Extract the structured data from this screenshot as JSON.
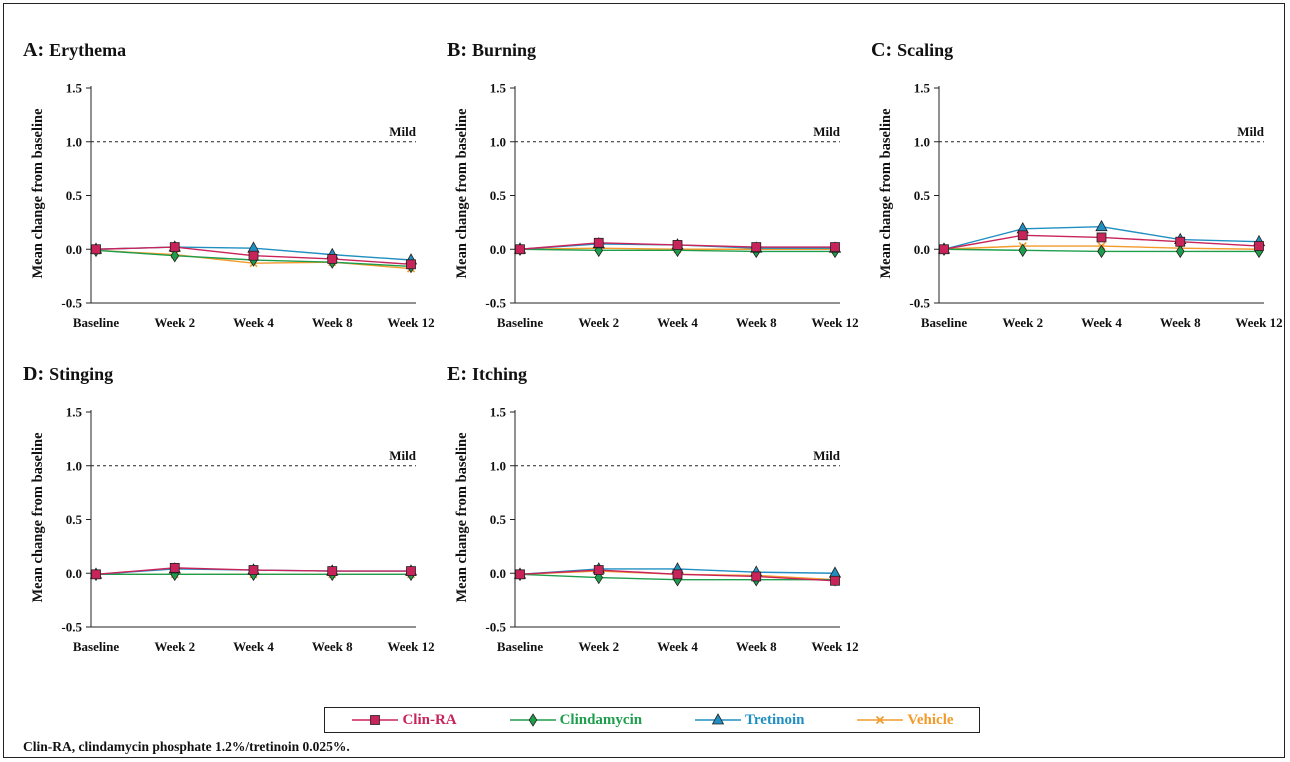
{
  "colors": {
    "Clin-RA": "#c8245a",
    "Clindamycin": "#1e9e4c",
    "Tretinoin": "#1f8fc2",
    "Vehicle": "#f39a2b"
  },
  "legend": [
    {
      "name": "Clin-RA",
      "marker": "square-marker-icon"
    },
    {
      "name": "Clindamycin",
      "marker": "diamond-marker-icon"
    },
    {
      "name": "Tretinoin",
      "marker": "triangle-marker-icon"
    },
    {
      "name": "Vehicle",
      "marker": "x-marker-icon"
    }
  ],
  "footnote": "Clin-RA, clindamycin phosphate 1.2%/tretinoin 0.025%.",
  "chart_data": [
    {
      "type": "line",
      "title": "Erythema",
      "panel_letter": "A:",
      "ylabel": "Mean change from baseline",
      "xlabel": "",
      "categories": [
        "Baseline",
        "Week 2",
        "Week 4",
        "Week 8",
        "Week 12"
      ],
      "ylim": [
        -0.5,
        1.5
      ],
      "yticks": [
        "-0.5",
        "0.0",
        "0.5",
        "1.0",
        "1.5"
      ],
      "reference_line": {
        "y": 1.0,
        "label": "Mild"
      },
      "series": [
        {
          "name": "Clin-RA",
          "values": [
            0.0,
            0.02,
            -0.06,
            -0.09,
            -0.14
          ]
        },
        {
          "name": "Clindamycin",
          "values": [
            -0.01,
            -0.06,
            -0.1,
            -0.12,
            -0.16
          ]
        },
        {
          "name": "Tretinoin",
          "values": [
            0.0,
            0.02,
            0.01,
            -0.05,
            -0.1
          ]
        },
        {
          "name": "Vehicle",
          "values": [
            -0.01,
            -0.05,
            -0.13,
            -0.12,
            -0.18
          ]
        }
      ]
    },
    {
      "type": "line",
      "title": "Burning",
      "panel_letter": "B:",
      "ylabel": "Mean change from baseline",
      "xlabel": "",
      "categories": [
        "Baseline",
        "Week 2",
        "Week 4",
        "Week 8",
        "Week 12"
      ],
      "ylim": [
        -0.5,
        1.5
      ],
      "yticks": [
        "-0.5",
        "0.0",
        "0.5",
        "1.0",
        "1.5"
      ],
      "reference_line": {
        "y": 1.0,
        "label": "Mild"
      },
      "series": [
        {
          "name": "Clin-RA",
          "values": [
            0.0,
            0.06,
            0.04,
            0.02,
            0.02
          ]
        },
        {
          "name": "Clindamycin",
          "values": [
            0.0,
            -0.01,
            -0.01,
            -0.02,
            -0.02
          ]
        },
        {
          "name": "Tretinoin",
          "values": [
            0.0,
            0.05,
            0.04,
            0.01,
            0.01
          ]
        },
        {
          "name": "Vehicle",
          "values": [
            0.0,
            0.01,
            0.0,
            0.0,
            0.0
          ]
        }
      ]
    },
    {
      "type": "line",
      "title": "Scaling",
      "panel_letter": "C:",
      "ylabel": "Mean change from baseline",
      "xlabel": "",
      "categories": [
        "Baseline",
        "Week 2",
        "Week 4",
        "Week 8",
        "Week 12"
      ],
      "ylim": [
        -0.5,
        1.5
      ],
      "yticks": [
        "-0.5",
        "0.0",
        "0.5",
        "1.0",
        "1.5"
      ],
      "reference_line": {
        "y": 1.0,
        "label": "Mild"
      },
      "series": [
        {
          "name": "Clin-RA",
          "values": [
            0.0,
            0.13,
            0.11,
            0.07,
            0.03
          ]
        },
        {
          "name": "Clindamycin",
          "values": [
            0.0,
            -0.01,
            -0.02,
            -0.02,
            -0.02
          ]
        },
        {
          "name": "Tretinoin",
          "values": [
            0.0,
            0.19,
            0.21,
            0.09,
            0.07
          ]
        },
        {
          "name": "Vehicle",
          "values": [
            0.0,
            0.03,
            0.03,
            0.01,
            0.0
          ]
        }
      ]
    },
    {
      "type": "line",
      "title": "Stinging",
      "panel_letter": "D:",
      "ylabel": "Mean change from baseline",
      "xlabel": "",
      "categories": [
        "Baseline",
        "Week 2",
        "Week 4",
        "Week 8",
        "Week 12"
      ],
      "ylim": [
        -0.5,
        1.5
      ],
      "yticks": [
        "-0.5",
        "0.0",
        "0.5",
        "1.0",
        "1.5"
      ],
      "reference_line": {
        "y": 1.0,
        "label": "Mild"
      },
      "series": [
        {
          "name": "Clin-RA",
          "values": [
            -0.01,
            0.05,
            0.03,
            0.02,
            0.02
          ]
        },
        {
          "name": "Clindamycin",
          "values": [
            -0.01,
            -0.01,
            -0.01,
            -0.01,
            -0.01
          ]
        },
        {
          "name": "Tretinoin",
          "values": [
            -0.01,
            0.04,
            0.03,
            0.02,
            0.02
          ]
        },
        {
          "name": "Vehicle",
          "values": [
            -0.01,
            -0.01,
            -0.01,
            -0.01,
            -0.01
          ]
        }
      ]
    },
    {
      "type": "line",
      "title": "Itching",
      "panel_letter": "E:",
      "ylabel": "Mean change from baseline",
      "xlabel": "",
      "categories": [
        "Baseline",
        "Week 2",
        "Week 4",
        "Week 8",
        "Week 12"
      ],
      "ylim": [
        -0.5,
        1.5
      ],
      "yticks": [
        "-0.5",
        "0.0",
        "0.5",
        "1.0",
        "1.5"
      ],
      "reference_line": {
        "y": 1.0,
        "label": "Mild"
      },
      "series": [
        {
          "name": "Clin-RA",
          "values": [
            -0.01,
            0.03,
            -0.01,
            -0.03,
            -0.07
          ]
        },
        {
          "name": "Clindamycin",
          "values": [
            -0.01,
            -0.04,
            -0.06,
            -0.06,
            -0.06
          ]
        },
        {
          "name": "Tretinoin",
          "values": [
            -0.01,
            0.04,
            0.04,
            0.01,
            0.0
          ]
        },
        {
          "name": "Vehicle",
          "values": [
            -0.01,
            0.02,
            -0.01,
            -0.02,
            -0.06
          ]
        }
      ]
    }
  ]
}
